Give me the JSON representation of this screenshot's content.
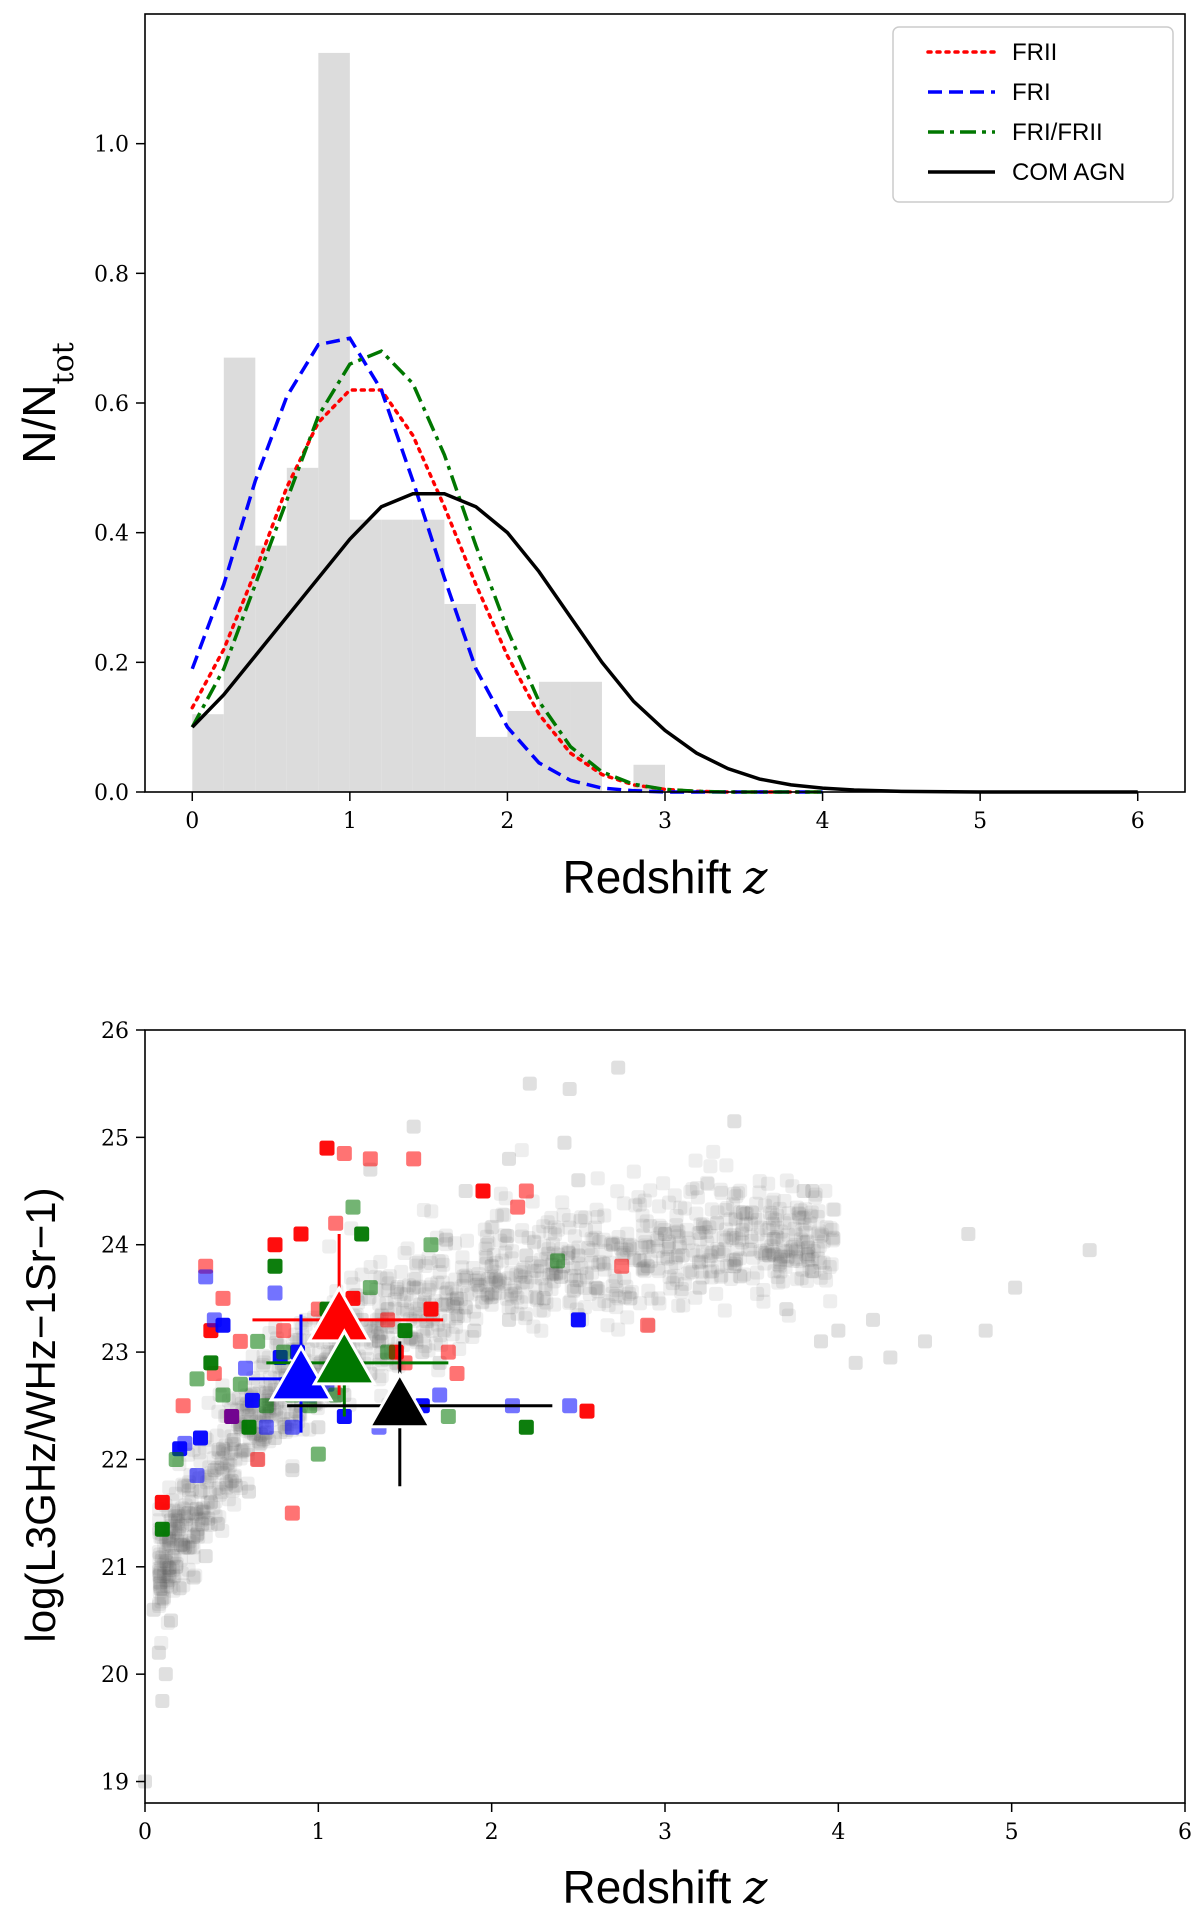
{
  "chart_data": [
    {
      "type": "bar",
      "panel": "top",
      "xlabel": "Redshift",
      "xlabel_var": "z",
      "ylabel_main": "N/N",
      "ylabel_sub": "tot",
      "xlim": [
        -0.3,
        6.3
      ],
      "ylim": [
        0,
        1.2
      ],
      "xticks": [
        0,
        1,
        2,
        3,
        4,
        5,
        6
      ],
      "yticks": [
        0.0,
        0.2,
        0.4,
        0.6,
        0.8,
        1.0
      ],
      "histogram": {
        "color": "#dcdcdc",
        "bin_edges": [
          0.0,
          0.2,
          0.4,
          0.6,
          0.8,
          1.0,
          1.2,
          1.4,
          1.6,
          1.8,
          2.0,
          2.2,
          2.4,
          2.6,
          2.8,
          3.0
        ],
        "values": [
          0.12,
          0.67,
          0.38,
          0.5,
          1.14,
          0.42,
          0.42,
          0.42,
          0.29,
          0.085,
          0.125,
          0.17,
          0.17,
          0.0,
          0.042
        ]
      },
      "series": [
        {
          "name": "FRII",
          "color": "#ff0000",
          "dash": "dotted",
          "x": [
            0,
            0.2,
            0.4,
            0.6,
            0.8,
            1.0,
            1.2,
            1.4,
            1.6,
            1.8,
            2.0,
            2.2,
            2.4,
            2.6,
            2.8,
            3.0,
            3.2,
            3.4,
            3.6,
            3.8,
            4.0
          ],
          "y": [
            0.13,
            0.22,
            0.34,
            0.47,
            0.57,
            0.62,
            0.62,
            0.55,
            0.44,
            0.32,
            0.21,
            0.12,
            0.06,
            0.027,
            0.011,
            0.004,
            0.001,
            0,
            0,
            0,
            0
          ]
        },
        {
          "name": "FRI",
          "color": "#0000ff",
          "dash": "dashed",
          "x": [
            0,
            0.2,
            0.4,
            0.6,
            0.8,
            1.0,
            1.2,
            1.4,
            1.6,
            1.8,
            2.0,
            2.2,
            2.4,
            2.6,
            2.8,
            3.0,
            3.2,
            3.4,
            3.6,
            3.8,
            4.0
          ],
          "y": [
            0.19,
            0.32,
            0.48,
            0.61,
            0.69,
            0.7,
            0.62,
            0.48,
            0.33,
            0.19,
            0.1,
            0.045,
            0.018,
            0.006,
            0.002,
            0,
            0,
            0,
            0,
            0,
            0
          ]
        },
        {
          "name": "FRI/FRII",
          "color": "#007700",
          "dash": "dashdot",
          "x": [
            0,
            0.2,
            0.4,
            0.6,
            0.8,
            1.0,
            1.2,
            1.4,
            1.6,
            1.8,
            2.0,
            2.2,
            2.4,
            2.6,
            2.8,
            3.0,
            3.2,
            3.4,
            3.6,
            3.8,
            4.0
          ],
          "y": [
            0.1,
            0.19,
            0.32,
            0.45,
            0.58,
            0.66,
            0.68,
            0.63,
            0.52,
            0.38,
            0.25,
            0.14,
            0.07,
            0.031,
            0.012,
            0.004,
            0.001,
            0,
            0,
            0,
            0
          ]
        },
        {
          "name": "COM AGN",
          "color": "#000000",
          "dash": "solid",
          "x": [
            0,
            0.2,
            0.4,
            0.6,
            0.8,
            1.0,
            1.2,
            1.4,
            1.6,
            1.8,
            2.0,
            2.2,
            2.4,
            2.6,
            2.8,
            3.0,
            3.2,
            3.4,
            3.6,
            3.8,
            4.0,
            4.2,
            4.5,
            5.0,
            5.5,
            6.0
          ],
          "y": [
            0.1,
            0.15,
            0.21,
            0.27,
            0.33,
            0.39,
            0.44,
            0.46,
            0.46,
            0.44,
            0.4,
            0.34,
            0.27,
            0.2,
            0.14,
            0.095,
            0.06,
            0.036,
            0.02,
            0.011,
            0.006,
            0.003,
            0.001,
            0,
            0,
            0
          ]
        }
      ],
      "legend_position": "top-right",
      "grid": false
    },
    {
      "type": "scatter",
      "panel": "bottom",
      "xlabel": "Redshift",
      "xlabel_var": "z",
      "ylabel": "log(L3GHz/WHz−1Sr−1)",
      "xlim": [
        0,
        6
      ],
      "ylim": [
        18.8,
        26
      ],
      "xticks": [
        0,
        1,
        2,
        3,
        4,
        5,
        6
      ],
      "yticks": [
        19,
        20,
        21,
        22,
        23,
        24,
        25,
        26
      ],
      "grid": false,
      "background_points": {
        "color": "#555555",
        "count": 1250,
        "trend": "log L rises with redshift from about 20.3 at z=0.1 to about 23.5 at z=4",
        "x": [
          0.0,
          0.08,
          0.1,
          0.12,
          0.15,
          0.05,
          0.18,
          0.2,
          0.22,
          0.25,
          0.28,
          0.3,
          0.32,
          0.35,
          0.38,
          0.4,
          0.42,
          0.45,
          0.5,
          0.55,
          0.6,
          0.65,
          0.7,
          0.75,
          0.8,
          0.85,
          0.9,
          0.95,
          1.0,
          1.05,
          1.1,
          1.15,
          1.2,
          1.25,
          1.3,
          1.35,
          1.4,
          1.45,
          1.5,
          1.55,
          1.6,
          1.65,
          1.7,
          1.8,
          1.9,
          2.0,
          2.1,
          2.2,
          2.3,
          2.4,
          2.5,
          2.6,
          2.7,
          2.8,
          2.9,
          3.0,
          3.1,
          3.2,
          3.3,
          3.4,
          3.5,
          3.6,
          3.7,
          3.8,
          3.9,
          4.0,
          4.1,
          4.2,
          4.3,
          4.5,
          4.75,
          4.85,
          5.02,
          5.45,
          2.22,
          2.45,
          2.73,
          1.55,
          3.4,
          2.5,
          2.42,
          1.3,
          1.85,
          2.1,
          3.45,
          3.85
        ],
        "y": [
          19.0,
          20.2,
          19.75,
          20.0,
          20.5,
          20.6,
          21.0,
          20.8,
          21.2,
          21.5,
          20.9,
          21.3,
          21.7,
          21.1,
          21.6,
          21.9,
          21.4,
          22.1,
          21.8,
          22.3,
          21.7,
          22.0,
          22.4,
          22.2,
          22.6,
          21.9,
          22.5,
          22.8,
          22.3,
          22.7,
          23.0,
          22.6,
          22.9,
          23.3,
          22.8,
          23.1,
          23.4,
          22.9,
          23.2,
          23.6,
          23.0,
          23.4,
          22.9,
          23.5,
          23.2,
          23.8,
          23.3,
          23.9,
          23.5,
          23.7,
          23.9,
          23.6,
          24.0,
          23.5,
          23.8,
          24.1,
          23.9,
          23.6,
          24.2,
          23.8,
          24.3,
          23.9,
          23.4,
          24.5,
          23.1,
          23.2,
          22.9,
          23.3,
          22.95,
          23.1,
          24.1,
          23.2,
          23.6,
          23.95,
          25.5,
          25.45,
          25.65,
          25.1,
          25.15,
          24.6,
          24.95,
          24.7,
          24.5,
          24.8,
          24.3,
          24.5
        ]
      },
      "groups": [
        {
          "name": "FRII",
          "color": "#ff0000",
          "x": [
            0.1,
            0.22,
            0.35,
            0.38,
            0.4,
            0.45,
            0.5,
            0.55,
            0.65,
            0.75,
            0.8,
            0.85,
            0.9,
            0.95,
            1.0,
            1.05,
            1.1,
            1.15,
            1.2,
            1.3,
            1.4,
            1.45,
            1.5,
            1.55,
            1.65,
            1.75,
            1.8,
            1.95,
            2.15,
            2.2,
            2.55,
            2.75,
            2.9
          ],
          "y": [
            21.6,
            22.5,
            23.8,
            23.2,
            22.8,
            23.5,
            22.4,
            23.1,
            22.0,
            24.0,
            23.2,
            21.5,
            24.1,
            22.7,
            23.4,
            24.9,
            24.2,
            24.85,
            23.5,
            24.8,
            23.3,
            23.0,
            22.9,
            24.8,
            23.4,
            23.0,
            22.8,
            24.5,
            24.35,
            24.5,
            22.45,
            23.8,
            23.25
          ]
        },
        {
          "name": "FRI",
          "color": "#0000ff",
          "x": [
            0.2,
            0.23,
            0.3,
            0.32,
            0.35,
            0.4,
            0.45,
            0.5,
            0.58,
            0.62,
            0.7,
            0.75,
            0.78,
            0.82,
            0.85,
            0.88,
            0.95,
            1.05,
            1.15,
            1.2,
            1.35,
            1.6,
            1.7,
            2.45,
            2.5,
            2.12
          ],
          "y": [
            22.1,
            22.15,
            21.85,
            22.2,
            23.7,
            23.3,
            23.25,
            22.4,
            22.85,
            22.55,
            22.3,
            23.55,
            22.95,
            22.7,
            22.3,
            23.0,
            22.6,
            22.7,
            22.4,
            22.9,
            22.3,
            22.5,
            22.6,
            22.5,
            23.3,
            22.5
          ]
        },
        {
          "name": "FRI/FRII",
          "color": "#007700",
          "x": [
            0.1,
            0.18,
            0.3,
            0.38,
            0.45,
            0.55,
            0.6,
            0.65,
            0.7,
            0.75,
            0.8,
            0.85,
            0.9,
            0.95,
            1.0,
            1.05,
            1.1,
            1.2,
            1.25,
            1.3,
            1.4,
            1.5,
            1.65,
            1.75,
            2.2,
            2.38
          ],
          "y": [
            21.35,
            22.0,
            22.75,
            22.9,
            22.6,
            22.7,
            22.3,
            23.1,
            22.5,
            23.8,
            23.0,
            22.6,
            22.7,
            22.5,
            22.05,
            23.4,
            22.6,
            24.35,
            24.1,
            23.6,
            23.0,
            23.2,
            24.0,
            22.4,
            22.3,
            23.85
          ]
        }
      ],
      "means": [
        {
          "name": "FRII",
          "color": "#ff0000",
          "x": 1.12,
          "y": 23.3,
          "xerr": [
            0.5,
            0.6
          ],
          "yerr": [
            0.7,
            0.8
          ]
        },
        {
          "name": "FRI",
          "color": "#0000ff",
          "x": 0.9,
          "y": 22.75,
          "xerr": [
            0.3,
            0.35
          ],
          "yerr": [
            0.5,
            0.6
          ]
        },
        {
          "name": "FRI/FRII",
          "color": "#007700",
          "x": 1.15,
          "y": 22.9,
          "xerr": [
            0.45,
            0.6
          ],
          "yerr": [
            0.5,
            0.6
          ]
        },
        {
          "name": "COM AGN",
          "color": "#000000",
          "x": 1.47,
          "y": 22.5,
          "xerr": [
            0.65,
            0.88
          ],
          "yerr": [
            0.75,
            0.6
          ]
        }
      ]
    }
  ]
}
